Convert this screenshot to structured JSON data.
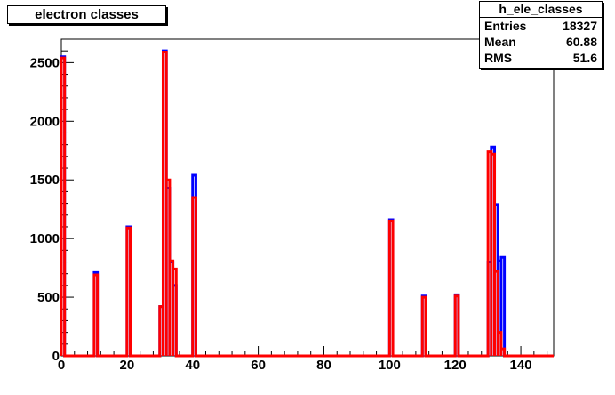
{
  "title": "electron classes",
  "stats": {
    "name": "h_ele_classes",
    "rows": [
      {
        "label": "Entries",
        "value": "18327"
      },
      {
        "label": "Mean",
        "value": "60.88"
      },
      {
        "label": "RMS",
        "value": "51.6"
      }
    ]
  },
  "chart_data": {
    "type": "line",
    "title": "electron classes",
    "xlabel": "",
    "ylabel": "",
    "xlim": [
      0,
      150
    ],
    "ylim": [
      0,
      2700
    ],
    "x_ticks": [
      0,
      20,
      40,
      60,
      80,
      100,
      120,
      140
    ],
    "y_ticks": [
      0,
      500,
      1000,
      1500,
      2000,
      2500
    ],
    "grid": false,
    "series": [
      {
        "color": "#0000ff",
        "bins": [
          {
            "x": [
              0,
              1
            ],
            "y": 2550
          },
          {
            "x": [
              10,
              11
            ],
            "y": 710
          },
          {
            "x": [
              20,
              21
            ],
            "y": 1100
          },
          {
            "x": [
              30,
              31
            ],
            "y": 420
          },
          {
            "x": [
              31,
              32
            ],
            "y": 2600
          },
          {
            "x": [
              32,
              33
            ],
            "y": 1430
          },
          {
            "x": [
              33,
              34
            ],
            "y": 800
          },
          {
            "x": [
              34,
              35
            ],
            "y": 600
          },
          {
            "x": [
              40,
              41
            ],
            "y": 1540
          },
          {
            "x": [
              100,
              101
            ],
            "y": 1160
          },
          {
            "x": [
              110,
              111
            ],
            "y": 510
          },
          {
            "x": [
              120,
              121
            ],
            "y": 520
          },
          {
            "x": [
              130,
              131
            ],
            "y": 800
          },
          {
            "x": [
              131,
              132
            ],
            "y": 1780
          },
          {
            "x": [
              132,
              133
            ],
            "y": 1290
          },
          {
            "x": [
              133,
              134
            ],
            "y": 810
          },
          {
            "x": [
              134,
              135
            ],
            "y": 840
          }
        ]
      },
      {
        "color": "#ff0000",
        "bins": [
          {
            "x": [
              0,
              1
            ],
            "y": 2540
          },
          {
            "x": [
              10,
              11
            ],
            "y": 690
          },
          {
            "x": [
              20,
              21
            ],
            "y": 1090
          },
          {
            "x": [
              30,
              31
            ],
            "y": 420
          },
          {
            "x": [
              31,
              32
            ],
            "y": 2590
          },
          {
            "x": [
              32,
              33
            ],
            "y": 1500
          },
          {
            "x": [
              33,
              34
            ],
            "y": 810
          },
          {
            "x": [
              34,
              35
            ],
            "y": 740
          },
          {
            "x": [
              40,
              41
            ],
            "y": 1350
          },
          {
            "x": [
              100,
              101
            ],
            "y": 1150
          },
          {
            "x": [
              110,
              111
            ],
            "y": 500
          },
          {
            "x": [
              120,
              121
            ],
            "y": 510
          },
          {
            "x": [
              130,
              131
            ],
            "y": 1740
          },
          {
            "x": [
              131,
              132
            ],
            "y": 1720
          },
          {
            "x": [
              132,
              133
            ],
            "y": 720
          },
          {
            "x": [
              133,
              134
            ],
            "y": 200
          },
          {
            "x": [
              134,
              135
            ],
            "y": 60
          }
        ]
      }
    ]
  }
}
